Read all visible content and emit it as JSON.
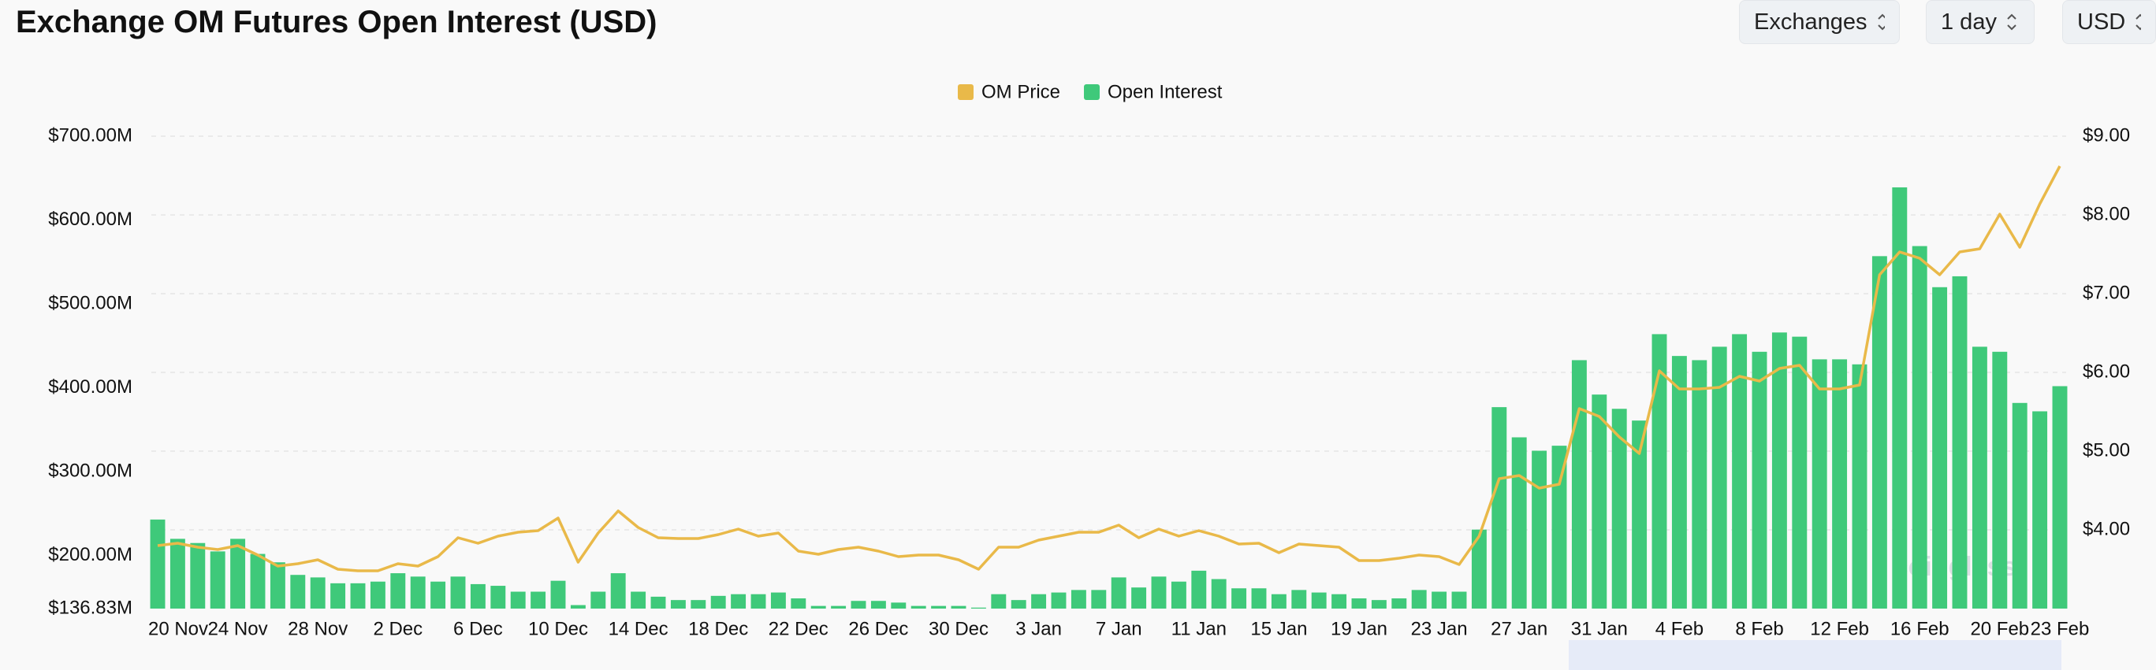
{
  "header": {
    "title": "Exchange OM Futures Open Interest (USD)",
    "controls": [
      "Exchanges",
      "1 day",
      "USD"
    ]
  },
  "chart_data": {
    "type": "combo",
    "categories": [
      "20 Nov",
      null,
      null,
      null,
      "24 Nov",
      null,
      null,
      null,
      "28 Nov",
      null,
      null,
      null,
      "2 Dec",
      null,
      null,
      null,
      "6 Dec",
      null,
      null,
      null,
      "10 Dec",
      null,
      null,
      null,
      "14 Dec",
      null,
      null,
      null,
      "18 Dec",
      null,
      null,
      null,
      "22 Dec",
      null,
      null,
      null,
      "26 Dec",
      null,
      null,
      null,
      "30 Dec",
      null,
      null,
      null,
      "3 Jan",
      null,
      null,
      null,
      "7 Jan",
      null,
      null,
      null,
      "11 Jan",
      null,
      null,
      null,
      "15 Jan",
      null,
      null,
      null,
      "19 Jan",
      null,
      null,
      null,
      "23 Jan",
      null,
      null,
      null,
      "27 Jan",
      null,
      null,
      null,
      "31 Jan",
      null,
      null,
      null,
      "4 Feb",
      null,
      null,
      null,
      "8 Feb",
      null,
      null,
      null,
      "12 Feb",
      null,
      null,
      null,
      "16 Feb",
      null,
      null,
      null,
      "20 Feb",
      null,
      null,
      "23 Feb"
    ],
    "series": [
      {
        "name": "OM Price",
        "type": "line",
        "axis": "y2",
        "color": "#e9b949",
        "values": [
          3.8,
          3.83,
          3.78,
          3.75,
          3.8,
          3.68,
          3.54,
          3.57,
          3.62,
          3.5,
          3.48,
          3.48,
          3.57,
          3.54,
          3.66,
          3.9,
          3.83,
          3.92,
          3.97,
          3.99,
          4.15,
          3.59,
          3.96,
          4.24,
          4.03,
          3.9,
          3.89,
          3.89,
          3.94,
          4.01,
          3.92,
          3.96,
          3.73,
          3.69,
          3.75,
          3.78,
          3.73,
          3.66,
          3.68,
          3.68,
          3.62,
          3.5,
          3.78,
          3.78,
          3.87,
          3.92,
          3.97,
          3.97,
          4.06,
          3.9,
          4.01,
          3.92,
          3.99,
          3.92,
          3.82,
          3.83,
          3.71,
          3.82,
          3.8,
          3.78,
          3.61,
          3.61,
          3.64,
          3.68,
          3.66,
          3.56,
          3.92,
          4.65,
          4.69,
          4.53,
          4.58,
          5.54,
          5.44,
          5.18,
          4.97,
          6.02,
          5.79,
          5.79,
          5.81,
          5.95,
          5.89,
          6.05,
          6.09,
          5.79,
          5.79,
          5.84,
          7.24,
          7.53,
          7.45,
          7.24,
          7.53,
          7.57,
          8.01,
          7.59,
          8.14,
          8.62
        ]
      },
      {
        "name": "Open Interest",
        "type": "bar",
        "color": "#3fc97a",
        "values": [
          243,
          220,
          215,
          205,
          220,
          202,
          192,
          177,
          174,
          167,
          167,
          169,
          179,
          175,
          169,
          175,
          166,
          164,
          157,
          157,
          170,
          141,
          157,
          179,
          157,
          151,
          147,
          147,
          152,
          154,
          154,
          156,
          149,
          140,
          140,
          146,
          146,
          144,
          140,
          140,
          140,
          138,
          154,
          147,
          154,
          156,
          159,
          159,
          174,
          162,
          175,
          169,
          182,
          172,
          161,
          161,
          154,
          159,
          156,
          154,
          149,
          147,
          149,
          159,
          157,
          157,
          231,
          377,
          341,
          325,
          331,
          433,
          392,
          375,
          361,
          464,
          438,
          433,
          449,
          464,
          443,
          466,
          461,
          434,
          434,
          428,
          557,
          639,
          569,
          520,
          533,
          449,
          443,
          382,
          372,
          402
        ]
      }
    ],
    "ylim": [
      136.83,
      700
    ],
    "yticks": [
      {
        "value": 136.83,
        "label": "$136.83M"
      },
      {
        "value": 200,
        "label": "$200.00M"
      },
      {
        "value": 300,
        "label": "$300.00M"
      },
      {
        "value": 400,
        "label": "$400.00M"
      },
      {
        "value": 500,
        "label": "$500.00M"
      },
      {
        "value": 600,
        "label": "$600.00M"
      },
      {
        "value": 700,
        "label": "$700.00M"
      }
    ],
    "y2lim": [
      3,
      9
    ],
    "y2ticks": [
      {
        "value": 4,
        "label": "$4.00"
      },
      {
        "value": 5,
        "label": "$5.00"
      },
      {
        "value": 6,
        "label": "$6.00"
      },
      {
        "value": 7,
        "label": "$7.00"
      },
      {
        "value": 8,
        "label": "$8.00"
      },
      {
        "value": 9,
        "label": "$9.00"
      }
    ],
    "grid": "y2",
    "legend": "top",
    "watermark": "coinglass"
  }
}
